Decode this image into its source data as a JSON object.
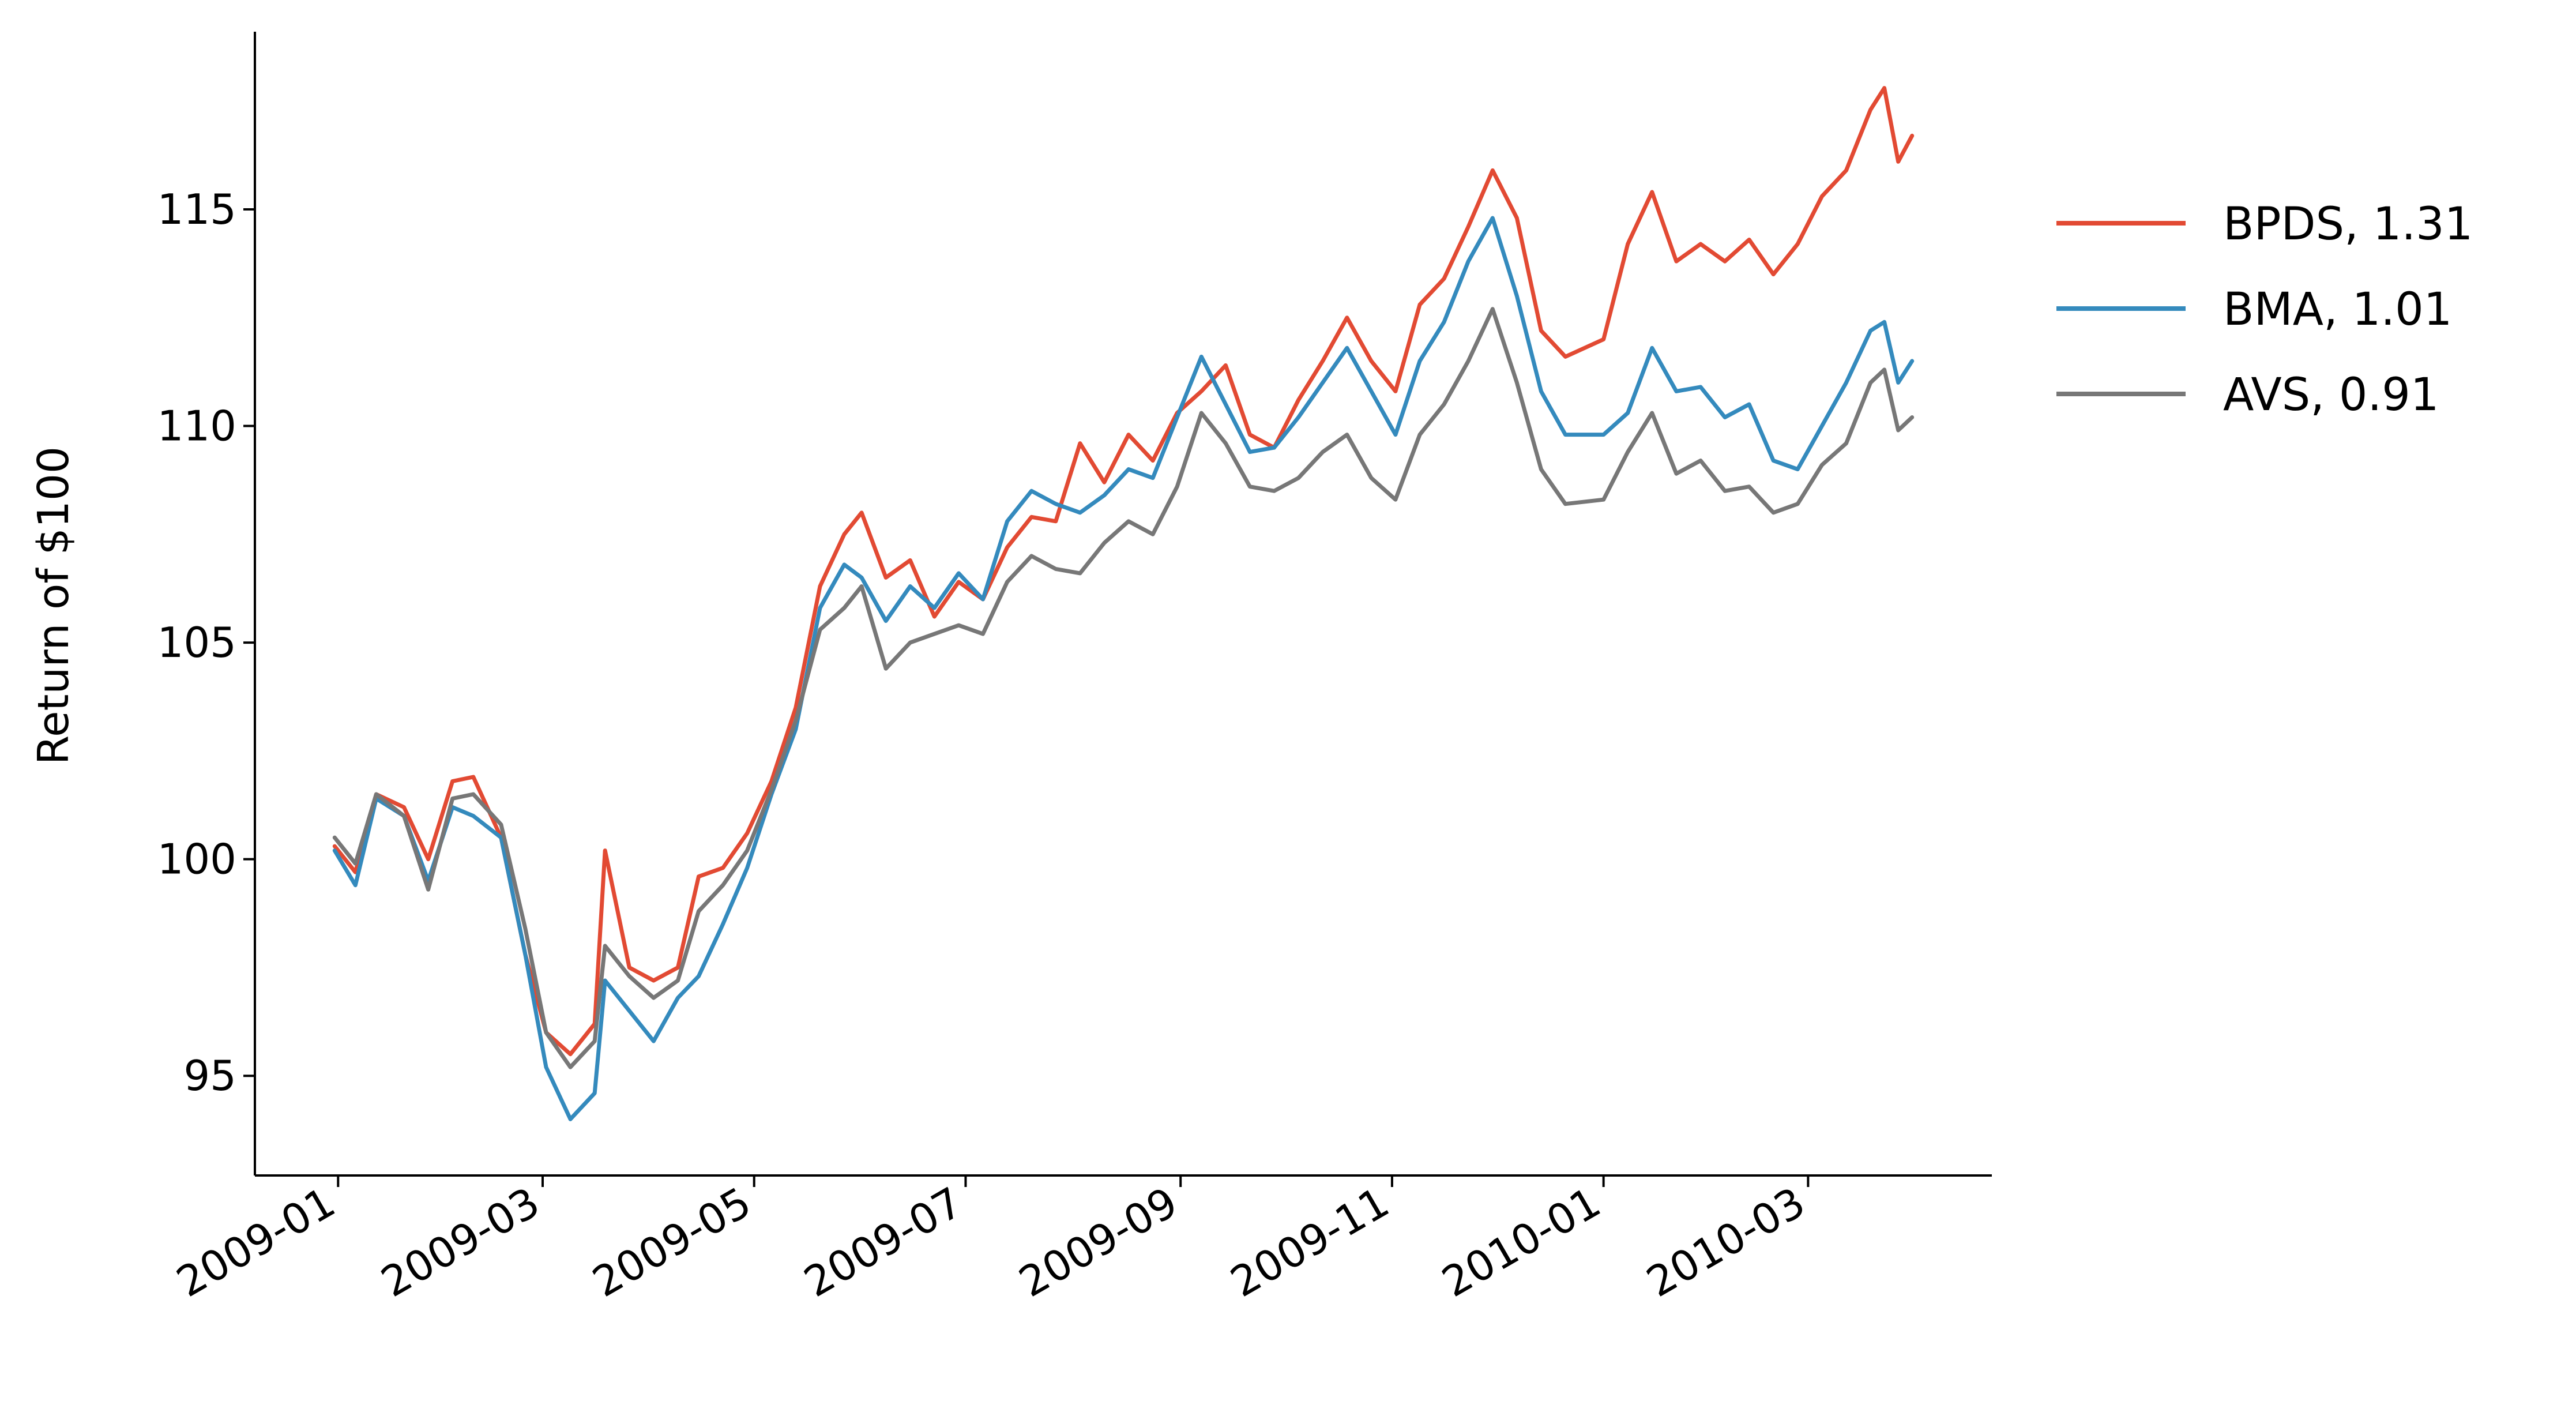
{
  "chart_data": {
    "type": "line",
    "title": "",
    "xlabel": "",
    "ylabel": "Return of $100",
    "x_type": "date",
    "xlim": [
      "2008-12-08",
      "2010-04-23"
    ],
    "ylim": [
      92.7,
      119.1
    ],
    "x_ticks": [
      "2009-01",
      "2009-03",
      "2009-05",
      "2009-07",
      "2009-09",
      "2009-11",
      "2010-01",
      "2010-03"
    ],
    "y_ticks": [
      95,
      100,
      105,
      110,
      115
    ],
    "grid": false,
    "legend_position": "right-outside-top",
    "series": [
      {
        "name": "BPDS, 1.31",
        "color": "#e24a33",
        "points": [
          [
            "2008-12-31",
            100.3
          ],
          [
            "2009-01-06",
            99.7
          ],
          [
            "2009-01-12",
            101.5
          ],
          [
            "2009-01-20",
            101.2
          ],
          [
            "2009-01-27",
            100.0
          ],
          [
            "2009-02-03",
            101.8
          ],
          [
            "2009-02-09",
            101.9
          ],
          [
            "2009-02-17",
            100.5
          ],
          [
            "2009-02-24",
            97.8
          ],
          [
            "2009-03-02",
            96.0
          ],
          [
            "2009-03-09",
            95.5
          ],
          [
            "2009-03-16",
            96.2
          ],
          [
            "2009-03-19",
            100.2
          ],
          [
            "2009-03-26",
            97.5
          ],
          [
            "2009-04-02",
            97.2
          ],
          [
            "2009-04-09",
            97.5
          ],
          [
            "2009-04-15",
            99.6
          ],
          [
            "2009-04-22",
            99.8
          ],
          [
            "2009-04-29",
            100.6
          ],
          [
            "2009-05-06",
            101.8
          ],
          [
            "2009-05-13",
            103.5
          ],
          [
            "2009-05-20",
            106.3
          ],
          [
            "2009-05-27",
            107.5
          ],
          [
            "2009-06-01",
            108.0
          ],
          [
            "2009-06-08",
            106.5
          ],
          [
            "2009-06-15",
            106.9
          ],
          [
            "2009-06-22",
            105.6
          ],
          [
            "2009-06-29",
            106.4
          ],
          [
            "2009-07-06",
            106.0
          ],
          [
            "2009-07-13",
            107.2
          ],
          [
            "2009-07-20",
            107.9
          ],
          [
            "2009-07-27",
            107.8
          ],
          [
            "2009-08-03",
            109.6
          ],
          [
            "2009-08-10",
            108.7
          ],
          [
            "2009-08-17",
            109.8
          ],
          [
            "2009-08-24",
            109.2
          ],
          [
            "2009-08-31",
            110.3
          ],
          [
            "2009-09-07",
            110.8
          ],
          [
            "2009-09-14",
            111.4
          ],
          [
            "2009-09-21",
            109.8
          ],
          [
            "2009-09-28",
            109.5
          ],
          [
            "2009-10-05",
            110.6
          ],
          [
            "2009-10-12",
            111.5
          ],
          [
            "2009-10-19",
            112.5
          ],
          [
            "2009-10-26",
            111.5
          ],
          [
            "2009-11-02",
            110.8
          ],
          [
            "2009-11-09",
            112.8
          ],
          [
            "2009-11-16",
            113.4
          ],
          [
            "2009-11-23",
            114.6
          ],
          [
            "2009-11-30",
            115.9
          ],
          [
            "2009-12-07",
            114.8
          ],
          [
            "2009-12-14",
            112.2
          ],
          [
            "2009-12-21",
            111.6
          ],
          [
            "2010-01-01",
            112.0
          ],
          [
            "2010-01-08",
            114.2
          ],
          [
            "2010-01-15",
            115.4
          ],
          [
            "2010-01-22",
            113.8
          ],
          [
            "2010-01-29",
            114.2
          ],
          [
            "2010-02-05",
            113.8
          ],
          [
            "2010-02-12",
            114.3
          ],
          [
            "2010-02-19",
            113.5
          ],
          [
            "2010-02-26",
            114.2
          ],
          [
            "2010-03-05",
            115.3
          ],
          [
            "2010-03-12",
            115.9
          ],
          [
            "2010-03-19",
            117.3
          ],
          [
            "2010-03-23",
            117.8
          ],
          [
            "2010-03-27",
            116.1
          ],
          [
            "2010-03-31",
            116.7
          ]
        ]
      },
      {
        "name": "BMA, 1.01",
        "color": "#348abd",
        "points": [
          [
            "2008-12-31",
            100.2
          ],
          [
            "2009-01-06",
            99.4
          ],
          [
            "2009-01-12",
            101.4
          ],
          [
            "2009-01-20",
            101.0
          ],
          [
            "2009-01-27",
            99.5
          ],
          [
            "2009-02-03",
            101.2
          ],
          [
            "2009-02-09",
            101.0
          ],
          [
            "2009-02-17",
            100.5
          ],
          [
            "2009-02-24",
            97.8
          ],
          [
            "2009-03-02",
            95.2
          ],
          [
            "2009-03-09",
            94.0
          ],
          [
            "2009-03-16",
            94.6
          ],
          [
            "2009-03-19",
            97.2
          ],
          [
            "2009-03-26",
            96.5
          ],
          [
            "2009-04-02",
            95.8
          ],
          [
            "2009-04-09",
            96.8
          ],
          [
            "2009-04-15",
            97.3
          ],
          [
            "2009-04-22",
            98.5
          ],
          [
            "2009-04-29",
            99.8
          ],
          [
            "2009-05-06",
            101.5
          ],
          [
            "2009-05-13",
            103.0
          ],
          [
            "2009-05-20",
            105.8
          ],
          [
            "2009-05-27",
            106.8
          ],
          [
            "2009-06-01",
            106.5
          ],
          [
            "2009-06-08",
            105.5
          ],
          [
            "2009-06-15",
            106.3
          ],
          [
            "2009-06-22",
            105.8
          ],
          [
            "2009-06-29",
            106.6
          ],
          [
            "2009-07-06",
            106.0
          ],
          [
            "2009-07-13",
            107.8
          ],
          [
            "2009-07-20",
            108.5
          ],
          [
            "2009-07-27",
            108.2
          ],
          [
            "2009-08-03",
            108.0
          ],
          [
            "2009-08-10",
            108.4
          ],
          [
            "2009-08-17",
            109.0
          ],
          [
            "2009-08-24",
            108.8
          ],
          [
            "2009-08-31",
            110.2
          ],
          [
            "2009-09-07",
            111.6
          ],
          [
            "2009-09-14",
            110.5
          ],
          [
            "2009-09-21",
            109.4
          ],
          [
            "2009-09-28",
            109.5
          ],
          [
            "2009-10-05",
            110.2
          ],
          [
            "2009-10-12",
            111.0
          ],
          [
            "2009-10-19",
            111.8
          ],
          [
            "2009-10-26",
            110.8
          ],
          [
            "2009-11-02",
            109.8
          ],
          [
            "2009-11-09",
            111.5
          ],
          [
            "2009-11-16",
            112.4
          ],
          [
            "2009-11-23",
            113.8
          ],
          [
            "2009-11-30",
            114.8
          ],
          [
            "2009-12-07",
            113.0
          ],
          [
            "2009-12-14",
            110.8
          ],
          [
            "2009-12-21",
            109.8
          ],
          [
            "2010-01-01",
            109.8
          ],
          [
            "2010-01-08",
            110.3
          ],
          [
            "2010-01-15",
            111.8
          ],
          [
            "2010-01-22",
            110.8
          ],
          [
            "2010-01-29",
            110.9
          ],
          [
            "2010-02-05",
            110.2
          ],
          [
            "2010-02-12",
            110.5
          ],
          [
            "2010-02-19",
            109.2
          ],
          [
            "2010-02-26",
            109.0
          ],
          [
            "2010-03-05",
            110.0
          ],
          [
            "2010-03-12",
            111.0
          ],
          [
            "2010-03-19",
            112.2
          ],
          [
            "2010-03-23",
            112.4
          ],
          [
            "2010-03-27",
            111.0
          ],
          [
            "2010-03-31",
            111.5
          ]
        ]
      },
      {
        "name": "AVS, 0.91",
        "color": "#777777",
        "points": [
          [
            "2008-12-31",
            100.5
          ],
          [
            "2009-01-06",
            99.9
          ],
          [
            "2009-01-12",
            101.5
          ],
          [
            "2009-01-20",
            101.0
          ],
          [
            "2009-01-27",
            99.3
          ],
          [
            "2009-02-03",
            101.4
          ],
          [
            "2009-02-09",
            101.5
          ],
          [
            "2009-02-17",
            100.8
          ],
          [
            "2009-02-24",
            98.4
          ],
          [
            "2009-03-02",
            96.0
          ],
          [
            "2009-03-09",
            95.2
          ],
          [
            "2009-03-16",
            95.8
          ],
          [
            "2009-03-19",
            98.0
          ],
          [
            "2009-03-26",
            97.3
          ],
          [
            "2009-04-02",
            96.8
          ],
          [
            "2009-04-09",
            97.2
          ],
          [
            "2009-04-15",
            98.8
          ],
          [
            "2009-04-22",
            99.4
          ],
          [
            "2009-04-29",
            100.2
          ],
          [
            "2009-05-06",
            101.6
          ],
          [
            "2009-05-13",
            103.2
          ],
          [
            "2009-05-20",
            105.3
          ],
          [
            "2009-05-27",
            105.8
          ],
          [
            "2009-06-01",
            106.3
          ],
          [
            "2009-06-08",
            104.4
          ],
          [
            "2009-06-15",
            105.0
          ],
          [
            "2009-06-22",
            105.2
          ],
          [
            "2009-06-29",
            105.4
          ],
          [
            "2009-07-06",
            105.2
          ],
          [
            "2009-07-13",
            106.4
          ],
          [
            "2009-07-20",
            107.0
          ],
          [
            "2009-07-27",
            106.7
          ],
          [
            "2009-08-03",
            106.6
          ],
          [
            "2009-08-10",
            107.3
          ],
          [
            "2009-08-17",
            107.8
          ],
          [
            "2009-08-24",
            107.5
          ],
          [
            "2009-08-31",
            108.6
          ],
          [
            "2009-09-07",
            110.3
          ],
          [
            "2009-09-14",
            109.6
          ],
          [
            "2009-09-21",
            108.6
          ],
          [
            "2009-09-28",
            108.5
          ],
          [
            "2009-10-05",
            108.8
          ],
          [
            "2009-10-12",
            109.4
          ],
          [
            "2009-10-19",
            109.8
          ],
          [
            "2009-10-26",
            108.8
          ],
          [
            "2009-11-02",
            108.3
          ],
          [
            "2009-11-09",
            109.8
          ],
          [
            "2009-11-16",
            110.5
          ],
          [
            "2009-11-23",
            111.5
          ],
          [
            "2009-11-30",
            112.7
          ],
          [
            "2009-12-07",
            111.0
          ],
          [
            "2009-12-14",
            109.0
          ],
          [
            "2009-12-21",
            108.2
          ],
          [
            "2010-01-01",
            108.3
          ],
          [
            "2010-01-08",
            109.4
          ],
          [
            "2010-01-15",
            110.3
          ],
          [
            "2010-01-22",
            108.9
          ],
          [
            "2010-01-29",
            109.2
          ],
          [
            "2010-02-05",
            108.5
          ],
          [
            "2010-02-12",
            108.6
          ],
          [
            "2010-02-19",
            108.0
          ],
          [
            "2010-02-26",
            108.2
          ],
          [
            "2010-03-05",
            109.1
          ],
          [
            "2010-03-12",
            109.6
          ],
          [
            "2010-03-19",
            111.0
          ],
          [
            "2010-03-23",
            111.3
          ],
          [
            "2010-03-27",
            109.9
          ],
          [
            "2010-03-31",
            110.2
          ]
        ]
      }
    ]
  }
}
